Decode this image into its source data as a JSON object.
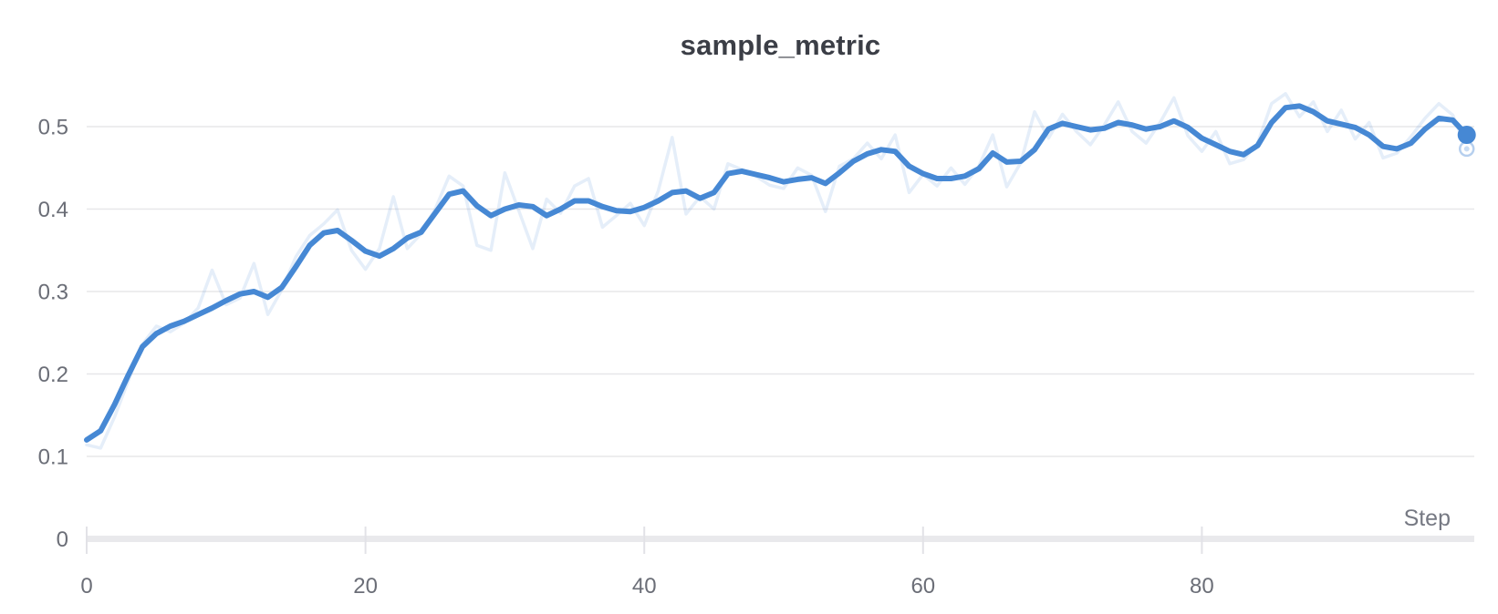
{
  "chart_data": {
    "type": "line",
    "title": "sample_metric",
    "xlabel": "Step",
    "ylabel": "",
    "x_min": 0,
    "x_max": 99,
    "x_ticks": [
      0,
      20,
      40,
      60,
      80
    ],
    "y_ticks": [
      "0",
      "0.1",
      "0.2",
      "0.3",
      "0.4",
      "0.5"
    ],
    "y_tick_values": [
      0,
      0.1,
      0.2,
      0.3,
      0.4,
      0.5
    ],
    "ylim": [
      0,
      0.55
    ],
    "grid": "horizontal",
    "legend": "none",
    "series": [
      {
        "name": "raw",
        "role": "original-unsmoothed",
        "color": "rgba(70,134,212,0.14)",
        "stroke_width": 3.5,
        "values": [
          0.114,
          0.11,
          0.148,
          0.192,
          0.236,
          0.258,
          0.251,
          0.262,
          0.28,
          0.326,
          0.284,
          0.292,
          0.334,
          0.272,
          0.302,
          0.342,
          0.368,
          0.382,
          0.399,
          0.35,
          0.327,
          0.352,
          0.415,
          0.352,
          0.37,
          0.4,
          0.44,
          0.428,
          0.356,
          0.35,
          0.444,
          0.398,
          0.352,
          0.412,
          0.395,
          0.428,
          0.437,
          0.378,
          0.392,
          0.407,
          0.38,
          0.422,
          0.487,
          0.394,
          0.415,
          0.4,
          0.455,
          0.448,
          0.44,
          0.429,
          0.425,
          0.45,
          0.441,
          0.397,
          0.452,
          0.461,
          0.48,
          0.461,
          0.49,
          0.42,
          0.442,
          0.428,
          0.45,
          0.43,
          0.452,
          0.49,
          0.427,
          0.456,
          0.518,
          0.486,
          0.515,
          0.494,
          0.478,
          0.502,
          0.53,
          0.494,
          0.48,
          0.505,
          0.535,
          0.489,
          0.47,
          0.494,
          0.455,
          0.46,
          0.48,
          0.528,
          0.54,
          0.512,
          0.53,
          0.494,
          0.52,
          0.485,
          0.505,
          0.462,
          0.468,
          0.488,
          0.51,
          0.528,
          0.514,
          0.473
        ]
      },
      {
        "name": "smoothed",
        "role": "smoothed-main-line",
        "color": "#4688d4",
        "stroke_width": 6,
        "values": [
          0.12,
          0.131,
          0.163,
          0.199,
          0.233,
          0.249,
          0.258,
          0.264,
          0.272,
          0.28,
          0.289,
          0.297,
          0.3,
          0.293,
          0.305,
          0.33,
          0.356,
          0.371,
          0.374,
          0.362,
          0.349,
          0.343,
          0.352,
          0.365,
          0.372,
          0.395,
          0.418,
          0.422,
          0.404,
          0.392,
          0.4,
          0.405,
          0.403,
          0.392,
          0.4,
          0.41,
          0.41,
          0.403,
          0.398,
          0.397,
          0.402,
          0.41,
          0.42,
          0.422,
          0.413,
          0.42,
          0.443,
          0.446,
          0.442,
          0.438,
          0.433,
          0.436,
          0.438,
          0.431,
          0.444,
          0.458,
          0.467,
          0.472,
          0.47,
          0.452,
          0.443,
          0.437,
          0.437,
          0.44,
          0.449,
          0.468,
          0.457,
          0.458,
          0.472,
          0.497,
          0.504,
          0.5,
          0.496,
          0.498,
          0.505,
          0.502,
          0.497,
          0.5,
          0.507,
          0.499,
          0.486,
          0.478,
          0.47,
          0.466,
          0.477,
          0.505,
          0.523,
          0.525,
          0.518,
          0.507,
          0.503,
          0.499,
          0.49,
          0.476,
          0.473,
          0.48,
          0.497,
          0.51,
          0.508,
          0.49
        ]
      }
    ],
    "end_markers": {
      "smoothed_dot": {
        "step": 99,
        "value": 0.49
      },
      "raw_ring": {
        "step": 99,
        "value": 0.473
      }
    }
  },
  "colors": {
    "background": "#ffffff",
    "title_text": "#3b3e46",
    "tick_text": "#6b6e77",
    "axis_label_text": "#767983",
    "gridline": "#e7e7e9",
    "axis_bar": "#e9e9ec",
    "tick_mark": "#e2e2e7",
    "line_blue": "#4688d4",
    "raw_line_light": "rgba(70,134,212,0.14)",
    "ring_stroke": "#b6cfee",
    "ring_inner": "#c9dcf3"
  }
}
